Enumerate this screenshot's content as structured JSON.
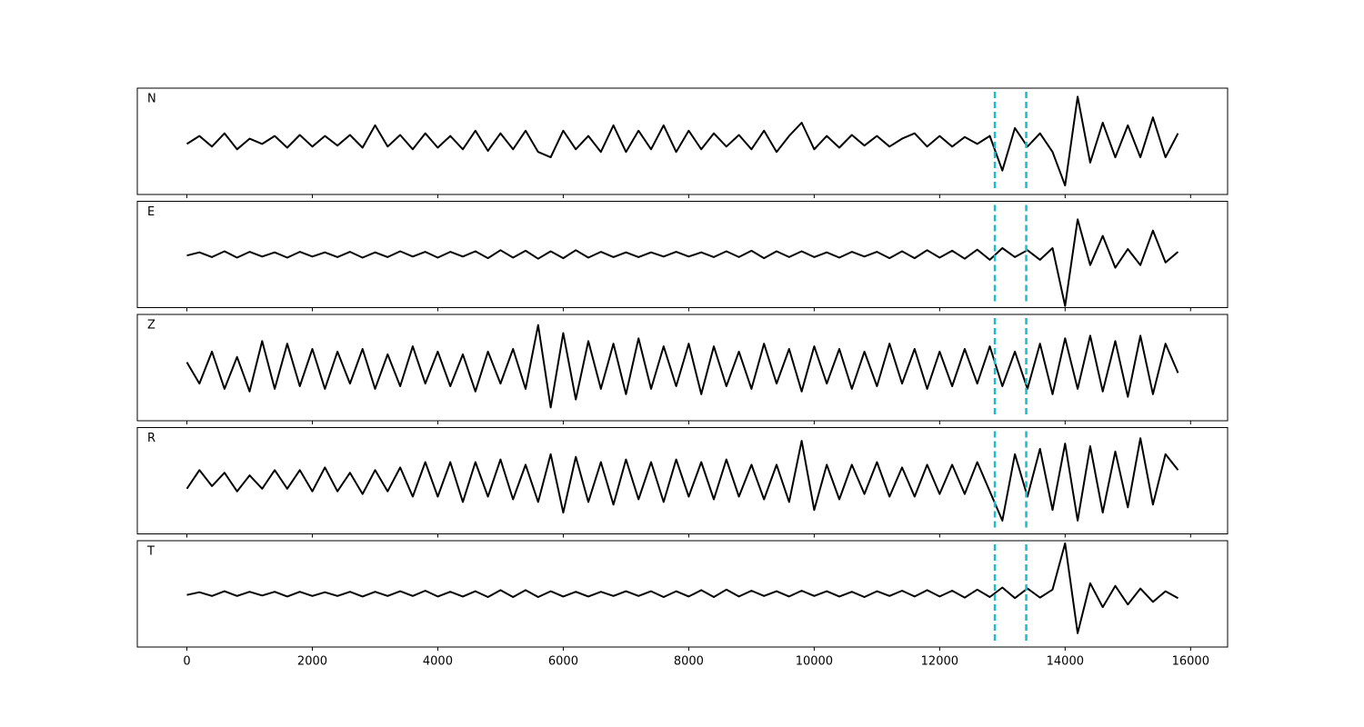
{
  "chart_data": {
    "type": "line",
    "layout": "stacked",
    "x": [
      0,
      200,
      400,
      600,
      800,
      1000,
      1200,
      1400,
      1600,
      1800,
      2000,
      2200,
      2400,
      2600,
      2800,
      3000,
      3200,
      3400,
      3600,
      3800,
      4000,
      4200,
      4400,
      4600,
      4800,
      5000,
      5200,
      5400,
      5600,
      5800,
      6000,
      6200,
      6400,
      6600,
      6800,
      7000,
      7200,
      7400,
      7600,
      7800,
      8000,
      8200,
      8400,
      8600,
      8800,
      9000,
      9200,
      9400,
      9600,
      9800,
      10000,
      10200,
      10400,
      10600,
      10800,
      11000,
      11200,
      11400,
      11600,
      11800,
      12000,
      12200,
      12400,
      12600,
      12800,
      13000,
      13200,
      13400,
      13600,
      13800,
      14000,
      14200,
      14400,
      14600,
      14800,
      15000,
      15200,
      15400,
      15600,
      15800
    ],
    "series": [
      {
        "name": "N",
        "color": "#000000",
        "values": [
          -0.05,
          0.1,
          -0.1,
          0.15,
          -0.15,
          0.05,
          -0.05,
          0.1,
          -0.12,
          0.12,
          -0.1,
          0.1,
          -0.08,
          0.12,
          -0.12,
          0.3,
          -0.1,
          0.12,
          -0.15,
          0.15,
          -0.12,
          0.1,
          -0.15,
          0.2,
          -0.18,
          0.15,
          -0.15,
          0.2,
          -0.2,
          -0.3,
          0.2,
          -0.15,
          0.1,
          -0.2,
          0.3,
          -0.2,
          0.2,
          -0.15,
          0.3,
          -0.2,
          0.2,
          -0.15,
          0.15,
          -0.1,
          0.12,
          -0.15,
          0.2,
          -0.2,
          0.1,
          0.35,
          -0.15,
          0.1,
          -0.12,
          0.12,
          -0.08,
          0.1,
          -0.1,
          0.05,
          0.15,
          -0.1,
          0.1,
          -0.1,
          0.08,
          -0.05,
          0.1,
          -0.55,
          0.25,
          -0.1,
          0.15,
          -0.2,
          -0.83,
          0.84,
          -0.4,
          0.35,
          -0.3,
          0.3,
          -0.3,
          0.45,
          -0.3,
          0.15
        ]
      },
      {
        "name": "E",
        "color": "#000000",
        "values": [
          -0.02,
          0.04,
          -0.05,
          0.06,
          -0.06,
          0.05,
          -0.04,
          0.04,
          -0.06,
          0.05,
          -0.04,
          0.04,
          -0.05,
          0.05,
          -0.06,
          0.04,
          -0.05,
          0.06,
          -0.04,
          0.05,
          -0.06,
          0.05,
          -0.04,
          0.06,
          -0.07,
          0.08,
          -0.06,
          0.07,
          -0.08,
          0.06,
          -0.07,
          0.08,
          -0.06,
          0.05,
          -0.05,
          0.04,
          -0.05,
          0.04,
          -0.04,
          0.05,
          -0.04,
          0.04,
          -0.05,
          0.06,
          -0.05,
          0.07,
          -0.07,
          0.06,
          -0.05,
          0.06,
          -0.05,
          0.04,
          -0.06,
          0.05,
          -0.04,
          0.05,
          -0.07,
          0.06,
          -0.07,
          0.08,
          -0.06,
          0.07,
          -0.08,
          0.09,
          -0.1,
          0.12,
          -0.05,
          0.08,
          -0.1,
          0.12,
          -0.97,
          0.66,
          -0.2,
          0.35,
          -0.25,
          0.1,
          -0.2,
          0.45,
          -0.15,
          0.05
        ]
      },
      {
        "name": "Z",
        "color": "#000000",
        "values": [
          0.1,
          -0.3,
          0.3,
          -0.4,
          0.2,
          -0.45,
          0.5,
          -0.4,
          0.45,
          -0.35,
          0.35,
          -0.4,
          0.3,
          -0.3,
          0.35,
          -0.4,
          0.25,
          -0.35,
          0.4,
          -0.3,
          0.3,
          -0.35,
          0.25,
          -0.45,
          0.3,
          -0.3,
          0.35,
          -0.4,
          0.8,
          -0.75,
          0.65,
          -0.6,
          0.5,
          -0.4,
          0.45,
          -0.5,
          0.55,
          -0.4,
          0.4,
          -0.35,
          0.45,
          -0.5,
          0.4,
          -0.35,
          0.3,
          -0.4,
          0.45,
          -0.3,
          0.35,
          -0.45,
          0.4,
          -0.3,
          0.35,
          -0.4,
          0.3,
          -0.35,
          0.45,
          -0.3,
          0.35,
          -0.4,
          0.3,
          -0.35,
          0.35,
          -0.3,
          0.4,
          -0.35,
          0.3,
          -0.4,
          0.45,
          -0.5,
          0.55,
          -0.4,
          0.6,
          -0.45,
          0.5,
          -0.55,
          0.6,
          -0.5,
          0.45,
          -0.1
        ]
      },
      {
        "name": "R",
        "color": "#000000",
        "values": [
          -0.15,
          0.2,
          -0.1,
          0.15,
          -0.2,
          0.1,
          -0.15,
          0.2,
          -0.15,
          0.2,
          -0.2,
          0.25,
          -0.2,
          0.15,
          -0.25,
          0.2,
          -0.2,
          0.25,
          -0.3,
          0.35,
          -0.3,
          0.35,
          -0.4,
          0.35,
          -0.3,
          0.4,
          -0.35,
          0.3,
          -0.4,
          0.5,
          -0.6,
          0.45,
          -0.4,
          0.35,
          -0.45,
          0.4,
          -0.35,
          0.35,
          -0.4,
          0.4,
          -0.3,
          0.35,
          -0.35,
          0.4,
          -0.3,
          0.3,
          -0.35,
          0.3,
          -0.4,
          0.75,
          -0.55,
          0.3,
          -0.35,
          0.3,
          -0.25,
          0.35,
          -0.3,
          0.25,
          -0.3,
          0.3,
          -0.25,
          0.3,
          -0.25,
          0.35,
          -0.2,
          -0.75,
          0.5,
          -0.3,
          0.6,
          -0.55,
          0.7,
          -0.75,
          0.65,
          -0.6,
          0.55,
          -0.5,
          0.8,
          -0.45,
          0.5,
          0.2
        ]
      },
      {
        "name": "T",
        "color": "#000000",
        "values": [
          -0.02,
          0.03,
          -0.04,
          0.05,
          -0.04,
          0.04,
          -0.03,
          0.04,
          -0.05,
          0.04,
          -0.04,
          0.03,
          -0.04,
          0.04,
          -0.05,
          0.04,
          -0.04,
          0.05,
          -0.04,
          0.06,
          -0.05,
          0.04,
          -0.05,
          0.05,
          -0.06,
          0.07,
          -0.06,
          0.07,
          -0.06,
          0.05,
          -0.05,
          0.04,
          -0.05,
          0.04,
          -0.04,
          0.05,
          -0.04,
          0.05,
          -0.06,
          0.05,
          -0.05,
          0.07,
          -0.06,
          0.08,
          -0.05,
          0.06,
          -0.04,
          0.05,
          -0.05,
          0.06,
          -0.04,
          0.05,
          -0.05,
          0.04,
          -0.06,
          0.05,
          -0.04,
          0.06,
          -0.05,
          0.07,
          -0.05,
          0.06,
          -0.07,
          0.08,
          -0.06,
          0.12,
          -0.08,
          0.1,
          -0.07,
          0.08,
          0.95,
          -0.74,
          0.2,
          -0.25,
          0.15,
          -0.2,
          0.1,
          -0.15,
          0.05,
          -0.08
        ]
      }
    ],
    "vlines": [
      12880,
      13380
    ],
    "vline_color": "#17becf",
    "xlim": [
      -790,
      16590
    ],
    "xticks": [
      0,
      2000,
      4000,
      6000,
      8000,
      10000,
      12000,
      14000,
      16000
    ],
    "ylim": [
      -1,
      1
    ]
  }
}
